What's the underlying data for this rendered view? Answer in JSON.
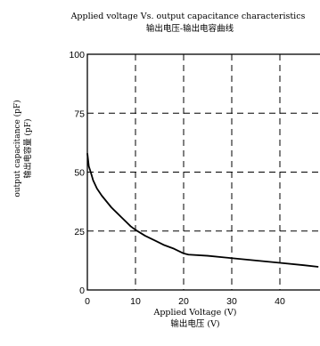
{
  "chart_data": {
    "type": "line",
    "title": "Applied voltage Vs. output capacitance characteristics",
    "subtitle": "输出电压-输出电容曲线",
    "xlabel": "Applied Voltage (V)",
    "xlabel_cn": "输出电压 (V)",
    "ylabel": "output capacitance (pF)",
    "ylabel_cn": "输出电容量 (pF)",
    "xlim": [
      0,
      50
    ],
    "ylim": [
      0,
      100
    ],
    "x_ticks": [
      "0",
      "10",
      "20",
      "30",
      "40",
      "50"
    ],
    "y_ticks": [
      "0",
      "25",
      "50",
      "75",
      "100"
    ],
    "grid": "dashed",
    "series": [
      {
        "x": [
          0,
          0.3,
          0.7,
          1.2,
          2,
          3,
          4,
          5,
          6,
          7,
          8,
          9,
          10,
          12,
          14,
          16,
          18,
          20,
          21,
          25,
          30,
          35,
          40,
          45,
          48
        ],
        "y": [
          58,
          52.5,
          50,
          46.5,
          43,
          40,
          37.5,
          35,
          33,
          31,
          29,
          27,
          25.5,
          23,
          21,
          19,
          17.5,
          15.5,
          15,
          14.5,
          13.5,
          12.5,
          11.5,
          10.5,
          9.8
        ]
      }
    ],
    "line_color": "#000000"
  }
}
